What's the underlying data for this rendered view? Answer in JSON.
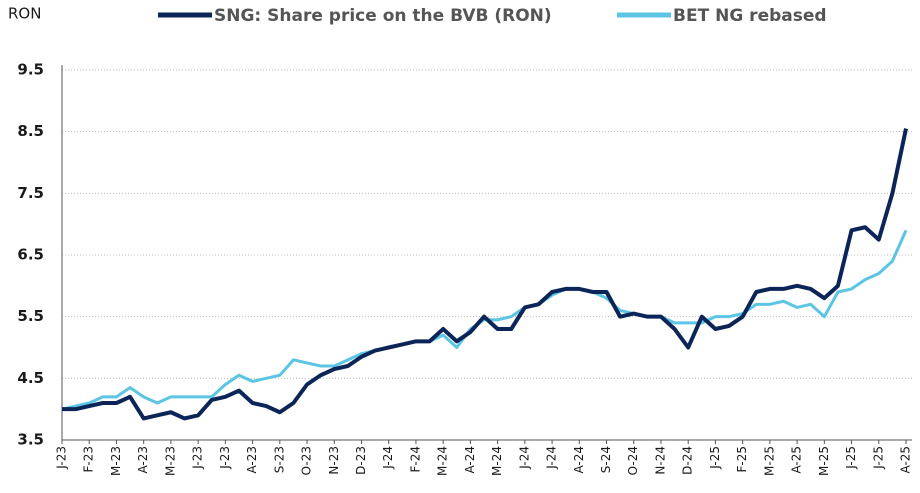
{
  "chart_data": {
    "type": "line",
    "y_axis_label": "RON",
    "categories": [
      "J-23",
      null,
      "F-23",
      null,
      "M-23",
      null,
      "A-23",
      null,
      "M-23",
      null,
      "J-23",
      null,
      "J-23",
      null,
      "A-23",
      null,
      "S-23",
      null,
      "O-23",
      null,
      "N-23",
      null,
      "D-23",
      null,
      "J-24",
      null,
      "F-24",
      null,
      "M-24",
      null,
      "A-24",
      null,
      "M-24",
      null,
      "J-24",
      null,
      "J-24",
      null,
      "A-24",
      null,
      "S-24",
      null,
      "O-24",
      null,
      "N-24",
      null,
      "D-24",
      null,
      "J-25",
      null,
      "F-25",
      null,
      "M-25",
      null,
      "A-25",
      null,
      "M-25",
      null,
      "J-25",
      null,
      "J-25",
      null,
      "A-25"
    ],
    "series": [
      {
        "name": "SNG: Share price on the BVB (RON)",
        "color": "#0b2559",
        "values": [
          4.0,
          4.0,
          4.05,
          4.1,
          4.1,
          4.2,
          3.85,
          3.9,
          3.95,
          3.85,
          3.9,
          4.15,
          4.2,
          4.3,
          4.1,
          4.05,
          3.95,
          4.1,
          4.4,
          4.55,
          4.65,
          4.7,
          4.85,
          4.95,
          5.0,
          5.05,
          5.1,
          5.1,
          5.3,
          5.1,
          5.25,
          5.5,
          5.3,
          5.3,
          5.65,
          5.7,
          5.9,
          5.95,
          5.95,
          5.9,
          5.9,
          5.5,
          5.55,
          5.5,
          5.5,
          5.3,
          5.0,
          5.5,
          5.3,
          5.35,
          5.5,
          5.9,
          5.95,
          5.95,
          6.0,
          5.95,
          5.8,
          6.0,
          6.9,
          6.95,
          6.75,
          7.5,
          8.55
        ]
      },
      {
        "name": "BET NG rebased",
        "color": "#5bc5e3",
        "values": [
          4.0,
          4.05,
          4.1,
          4.2,
          4.2,
          4.35,
          4.2,
          4.1,
          4.2,
          4.2,
          4.2,
          4.2,
          4.4,
          4.55,
          4.45,
          4.5,
          4.55,
          4.8,
          4.75,
          4.7,
          4.7,
          4.8,
          4.9,
          4.95,
          5.0,
          5.05,
          5.1,
          5.1,
          5.2,
          5.0,
          5.3,
          5.45,
          5.45,
          5.5,
          5.65,
          5.7,
          5.85,
          5.95,
          5.95,
          5.9,
          5.8,
          5.6,
          5.55,
          5.5,
          5.5,
          5.4,
          5.4,
          5.4,
          5.5,
          5.5,
          5.55,
          5.7,
          5.7,
          5.75,
          5.65,
          5.7,
          5.5,
          5.9,
          5.95,
          6.1,
          6.2,
          6.4,
          6.9
        ]
      }
    ],
    "ylim": [
      3.5,
      9.5
    ],
    "yticks": [
      3.5,
      4.5,
      5.5,
      6.5,
      7.5,
      8.5,
      9.5
    ],
    "grid": true
  }
}
